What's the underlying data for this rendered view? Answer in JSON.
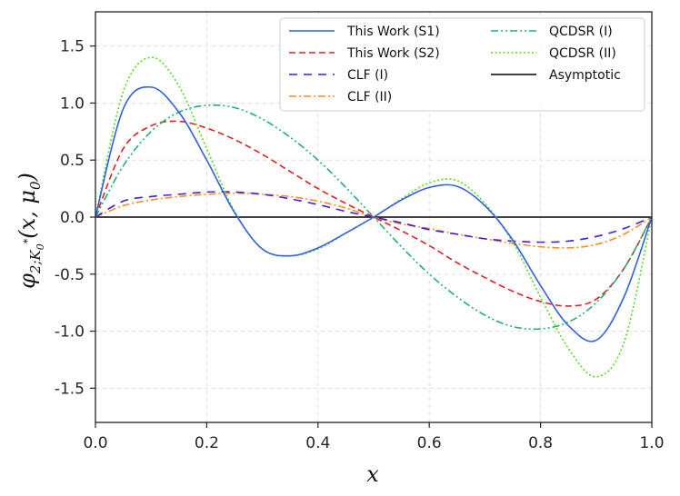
{
  "chart_data": {
    "type": "line",
    "title": "",
    "xlabel": "x",
    "ylabel": "φ2;K0*(x, μ0)",
    "ylabel_parts": {
      "phi": "φ",
      "sub": "2;K",
      "subsub": "0",
      "supsup": "*",
      "args": "(x, μ",
      "mu_sub": "0",
      "close": ")"
    },
    "xlim": [
      0.0,
      1.0
    ],
    "ylim": [
      -1.8,
      1.8
    ],
    "xticks": [
      "0.0",
      "0.2",
      "0.4",
      "0.6",
      "0.8",
      "1.0"
    ],
    "yticks": [
      "-1.5",
      "-1.0",
      "-0.5",
      "0.0",
      "0.5",
      "1.0",
      "1.5"
    ],
    "xtick_values": [
      0.0,
      0.2,
      0.4,
      0.6,
      0.8,
      1.0
    ],
    "ytick_values": [
      -1.5,
      -1.0,
      -0.5,
      0.0,
      0.5,
      1.0,
      1.5
    ],
    "grid": true,
    "legend_position": "top-right",
    "x": [
      0.0,
      0.05,
      0.1,
      0.15,
      0.2,
      0.25,
      0.3,
      0.35,
      0.4,
      0.45,
      0.5,
      0.55,
      0.6,
      0.65,
      0.7,
      0.75,
      0.8,
      0.85,
      0.9,
      0.95,
      1.0
    ],
    "series": [
      {
        "name": "This Work (S1)",
        "color": "#3060e0",
        "dash": "solid",
        "values": [
          0.0,
          0.95,
          1.14,
          0.92,
          0.5,
          0.04,
          -0.28,
          -0.34,
          -0.27,
          -0.14,
          0.0,
          0.15,
          0.26,
          0.27,
          0.1,
          -0.2,
          -0.6,
          -0.95,
          -1.08,
          -0.7,
          0.0
        ]
      },
      {
        "name": "This Work (S2)",
        "color": "#e02020",
        "dash": "dashed",
        "values": [
          0.0,
          0.6,
          0.8,
          0.84,
          0.78,
          0.68,
          0.55,
          0.4,
          0.25,
          0.12,
          0.0,
          -0.12,
          -0.25,
          -0.4,
          -0.53,
          -0.65,
          -0.74,
          -0.78,
          -0.72,
          -0.45,
          0.0
        ]
      },
      {
        "name": "CLF (I)",
        "color": "#3a20e0",
        "dash": "dashed-wide",
        "values": [
          0.0,
          0.14,
          0.18,
          0.2,
          0.22,
          0.22,
          0.2,
          0.16,
          0.11,
          0.05,
          0.0,
          -0.05,
          -0.11,
          -0.15,
          -0.19,
          -0.21,
          -0.22,
          -0.21,
          -0.17,
          -0.1,
          0.0
        ]
      },
      {
        "name": "CLF (II)",
        "color": "#ff8c1a",
        "dash": "dashdot",
        "values": [
          0.0,
          0.1,
          0.15,
          0.18,
          0.2,
          0.21,
          0.2,
          0.18,
          0.14,
          0.08,
          0.0,
          -0.06,
          -0.1,
          -0.15,
          -0.19,
          -0.23,
          -0.26,
          -0.27,
          -0.24,
          -0.15,
          0.0
        ]
      },
      {
        "name": "QCDSR (I)",
        "color": "#20b070",
        "dash": "dashdotdot",
        "values": [
          0.0,
          0.45,
          0.75,
          0.92,
          0.98,
          0.96,
          0.86,
          0.7,
          0.5,
          0.26,
          0.0,
          -0.26,
          -0.5,
          -0.7,
          -0.86,
          -0.96,
          -0.98,
          -0.92,
          -0.75,
          -0.45,
          0.0
        ]
      },
      {
        "name": "QCDSR (II)",
        "color": "#55dd20",
        "dash": "dotted",
        "values": [
          0.0,
          1.1,
          1.4,
          1.15,
          0.6,
          0.05,
          -0.28,
          -0.34,
          -0.28,
          -0.14,
          0.0,
          0.16,
          0.3,
          0.32,
          0.12,
          -0.22,
          -0.7,
          -1.15,
          -1.4,
          -1.1,
          0.0
        ]
      },
      {
        "name": "Asymptotic",
        "color": "#000000",
        "dash": "solid",
        "values": [
          0.0,
          0.0,
          0.0,
          0.0,
          0.0,
          0.0,
          0.0,
          0.0,
          0.0,
          0.0,
          0.0,
          0.0,
          0.0,
          0.0,
          0.0,
          0.0,
          0.0,
          0.0,
          0.0,
          0.0,
          0.0
        ]
      }
    ]
  }
}
